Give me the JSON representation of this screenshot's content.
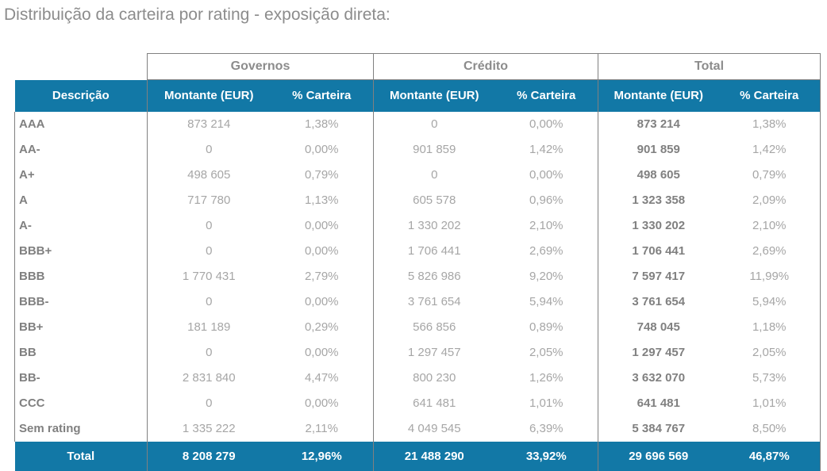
{
  "title": "Distribuição da carteira por rating - exposição direta:",
  "colors": {
    "header_bg": "#1278a6",
    "header_text": "#ffffff",
    "border": "#808080",
    "group_label_text": "#8c8c8c",
    "rating_label_text": "#808080",
    "value_text": "#a6a6a6",
    "title_text": "#8c8c8c"
  },
  "chart_data": {
    "type": "table",
    "title": "Distribuição da carteira por rating - exposição direta:",
    "column_groups": [
      "Governos",
      "Crédito",
      "Total"
    ],
    "columns": [
      "Descrição",
      "Montante (EUR)",
      "% Carteira",
      "Montante (EUR)",
      "% Carteira",
      "Montante (EUR)",
      "% Carteira"
    ],
    "rows": [
      [
        "AAA",
        "873 214",
        "1,38%",
        "0",
        "0,00%",
        "873 214",
        "1,38%"
      ],
      [
        "AA-",
        "0",
        "0,00%",
        "901 859",
        "1,42%",
        "901 859",
        "1,42%"
      ],
      [
        "A+",
        "498 605",
        "0,79%",
        "0",
        "0,00%",
        "498 605",
        "0,79%"
      ],
      [
        "A",
        "717 780",
        "1,13%",
        "605 578",
        "0,96%",
        "1 323 358",
        "2,09%"
      ],
      [
        "A-",
        "0",
        "0,00%",
        "1 330 202",
        "2,10%",
        "1 330 202",
        "2,10%"
      ],
      [
        "BBB+",
        "0",
        "0,00%",
        "1 706 441",
        "2,69%",
        "1 706 441",
        "2,69%"
      ],
      [
        "BBB",
        "1 770 431",
        "2,79%",
        "5 826 986",
        "9,20%",
        "7 597 417",
        "11,99%"
      ],
      [
        "BBB-",
        "0",
        "0,00%",
        "3 761 654",
        "5,94%",
        "3 761 654",
        "5,94%"
      ],
      [
        "BB+",
        "181 189",
        "0,29%",
        "566 856",
        "0,89%",
        "748 045",
        "1,18%"
      ],
      [
        "BB",
        "0",
        "0,00%",
        "1 297 457",
        "2,05%",
        "1 297 457",
        "2,05%"
      ],
      [
        "BB-",
        "2 831 840",
        "4,47%",
        "800 230",
        "1,26%",
        "3 632 070",
        "5,73%"
      ],
      [
        "CCC",
        "0",
        "0,00%",
        "641 481",
        "1,01%",
        "641 481",
        "1,01%"
      ],
      [
        "Sem rating",
        "1 335 222",
        "2,11%",
        "4 049 545",
        "6,39%",
        "5 384 767",
        "8,50%"
      ]
    ],
    "total_row": [
      "Total",
      "8 208 279",
      "12,96%",
      "21 488 290",
      "33,92%",
      "29 696 569",
      "46,87%"
    ]
  }
}
